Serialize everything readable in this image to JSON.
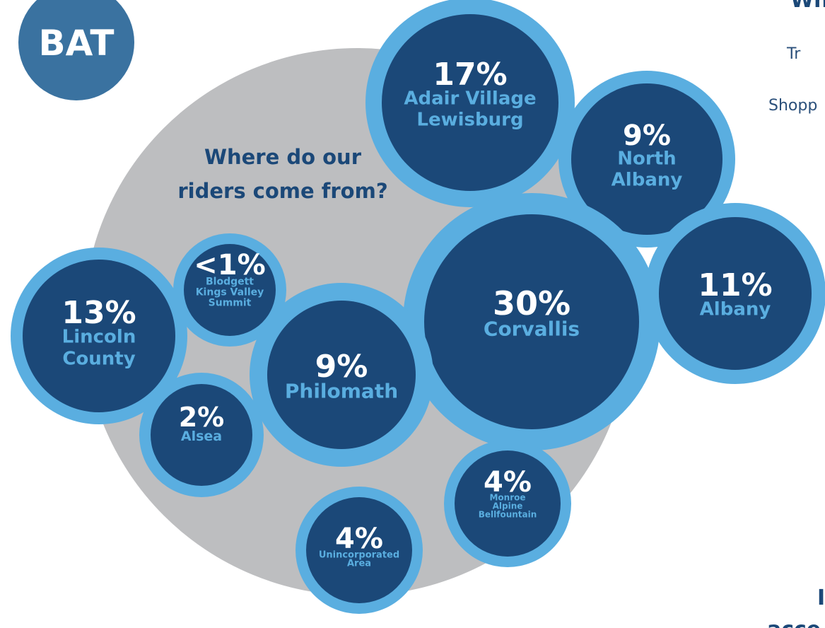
{
  "logo": "BAT",
  "heading": [
    "Where do our",
    "riders come from?"
  ],
  "bubbles": [
    {
      "percent": "17%",
      "place": [
        "Adair Village",
        "Lewisburg"
      ]
    },
    {
      "percent": "9%",
      "place": [
        "North",
        "Albany"
      ]
    },
    {
      "percent": "30%",
      "place": [
        "Corvallis"
      ]
    },
    {
      "percent": "11%",
      "place": [
        "Albany"
      ]
    },
    {
      "percent": "13%",
      "place": [
        "Lincoln",
        "County"
      ]
    },
    {
      "percent": "<1%",
      "place": [
        "Blodgett",
        "Kings Valley",
        "Summit"
      ]
    },
    {
      "percent": "9%",
      "place": [
        "Philomath"
      ]
    },
    {
      "percent": "2%",
      "place": [
        "Alsea"
      ]
    },
    {
      "percent": "4%",
      "place": [
        "Monroe",
        "Alpine",
        "Bellfountain"
      ]
    },
    {
      "percent": "4%",
      "place": [
        "Unincorporated",
        "Area"
      ]
    }
  ],
  "side_text": [
    "Wh",
    "Tr",
    "Shopp",
    "I",
    "acce"
  ]
}
